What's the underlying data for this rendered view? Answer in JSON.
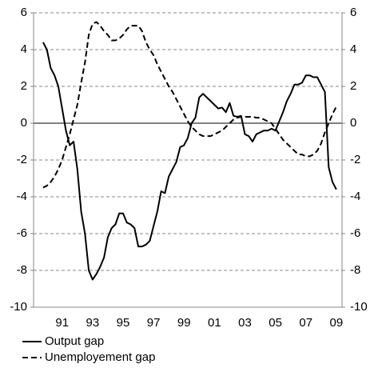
{
  "chart_data": {
    "type": "line",
    "categories": [
      null,
      null,
      null,
      null,
      null,
      null,
      null,
      "91",
      null,
      null,
      null,
      null,
      null,
      null,
      null,
      "93",
      null,
      null,
      null,
      null,
      null,
      null,
      null,
      "95",
      null,
      null,
      null,
      null,
      null,
      null,
      null,
      "97",
      null,
      null,
      null,
      null,
      null,
      null,
      null,
      "99",
      null,
      null,
      null,
      null,
      null,
      null,
      null,
      "01",
      null,
      null,
      null,
      null,
      null,
      null,
      null,
      "03",
      null,
      null,
      null,
      null,
      null,
      null,
      null,
      "05",
      null,
      null,
      null,
      null,
      null,
      null,
      null,
      "07",
      null,
      null,
      null,
      null,
      null,
      null,
      null,
      "09",
      null
    ],
    "series": [
      {
        "name": "Output gap",
        "color": "#000000",
        "style": "solid",
        "values": [
          null,
          null,
          4.4,
          4.0,
          3.0,
          2.6,
          2.0,
          0.8,
          -0.4,
          -1.2,
          -1.0,
          -2.5,
          -4.8,
          -6.0,
          -8.0,
          -8.5,
          -8.2,
          -7.8,
          -7.3,
          -6.2,
          -5.7,
          -5.5,
          -4.9,
          -4.9,
          -5.4,
          -5.5,
          -5.7,
          -6.7,
          -6.7,
          -6.6,
          -6.4,
          -5.6,
          -4.8,
          -3.7,
          -3.8,
          -2.9,
          -2.5,
          -2.1,
          -1.3,
          -1.2,
          -0.8,
          0.0,
          0.3,
          1.4,
          1.6,
          1.4,
          1.2,
          1.0,
          0.8,
          0.85,
          0.6,
          1.1,
          0.4,
          0.35,
          0.4,
          -0.6,
          -0.7,
          -1.0,
          -0.6,
          -0.5,
          -0.4,
          -0.4,
          -0.3,
          -0.4,
          0.1,
          0.6,
          1.2,
          1.6,
          2.1,
          2.1,
          2.2,
          2.6,
          2.6,
          2.5,
          2.5,
          2.1,
          1.7,
          -2.4,
          -3.2,
          -3.6,
          null
        ]
      },
      {
        "name": "Unemployement gap",
        "color": "#000000",
        "style": "dashed",
        "values": [
          null,
          null,
          -3.5,
          -3.4,
          -3.2,
          -2.9,
          -2.5,
          -2.0,
          -1.3,
          -0.6,
          0.2,
          1.0,
          2.2,
          3.3,
          4.8,
          5.4,
          5.5,
          5.3,
          5.0,
          4.8,
          4.5,
          4.5,
          4.6,
          4.8,
          5.1,
          5.3,
          5.3,
          5.3,
          5.0,
          4.4,
          4.0,
          3.7,
          3.2,
          2.8,
          2.4,
          2.0,
          1.7,
          1.3,
          0.9,
          0.5,
          0.1,
          -0.2,
          -0.4,
          -0.6,
          -0.7,
          -0.7,
          -0.7,
          -0.6,
          -0.5,
          -0.4,
          -0.2,
          0.0,
          0.2,
          0.3,
          0.35,
          0.35,
          0.35,
          0.35,
          0.3,
          0.3,
          0.2,
          0.1,
          0.0,
          -0.3,
          -0.6,
          -0.9,
          -1.1,
          -1.3,
          -1.5,
          -1.7,
          -1.7,
          -1.8,
          -1.8,
          -1.7,
          -1.5,
          -1.1,
          -0.5,
          0.0,
          0.5,
          0.9,
          null
        ]
      }
    ],
    "ylim": [
      -10,
      6
    ],
    "yticks": [
      -10,
      -8,
      -6,
      -4,
      -2,
      0,
      2,
      4,
      6
    ],
    "y2lim": [
      -10,
      6
    ],
    "y2ticks": [
      -10,
      -8,
      -6,
      -4,
      -2,
      0,
      2,
      4,
      6
    ],
    "grid": true,
    "legend": "bottom"
  }
}
